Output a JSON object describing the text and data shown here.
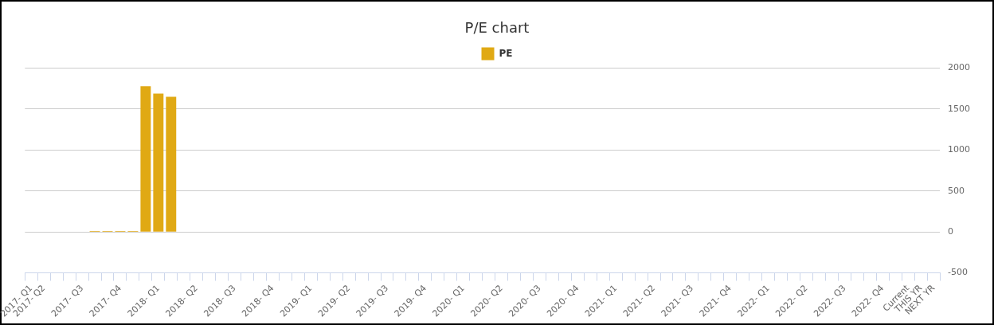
{
  "chart_data": {
    "type": "bar",
    "title": "P/E chart",
    "categories": [
      "2017- Q1",
      "2017- Q2",
      null,
      null,
      "2017- Q3",
      null,
      null,
      "2017- Q4",
      null,
      null,
      "2018- Q1",
      null,
      null,
      "2018- Q2",
      null,
      null,
      "2018- Q3",
      null,
      null,
      "2018- Q4",
      null,
      null,
      "2019- Q1",
      null,
      null,
      "2019- Q2",
      null,
      null,
      "2019- Q3",
      null,
      null,
      "2019- Q4",
      null,
      null,
      "2020- Q1",
      null,
      null,
      "2020- Q2",
      null,
      null,
      "2020- Q3",
      null,
      null,
      "2020- Q4",
      null,
      null,
      "2021- Q1",
      null,
      null,
      "2021- Q2",
      null,
      null,
      "2021- Q3",
      null,
      null,
      "2021- Q4",
      null,
      null,
      "2022- Q1",
      null,
      null,
      "2022- Q2",
      null,
      null,
      "2022- Q3",
      null,
      null,
      "2022- Q4",
      null,
      "Current",
      "THIS YR",
      "NEXT YR"
    ],
    "series": [
      {
        "name": "PE",
        "color": "#e0a914",
        "values": [
          0,
          0,
          0,
          0,
          0,
          10,
          10,
          10,
          10,
          1780,
          1690,
          1650,
          0,
          0,
          0,
          0,
          0,
          0,
          0,
          0,
          0,
          0,
          0,
          0,
          0,
          0,
          0,
          0,
          0,
          0,
          0,
          0,
          0,
          0,
          0,
          0,
          0,
          0,
          0,
          0,
          0,
          0,
          0,
          0,
          0,
          0,
          null,
          null,
          null,
          null,
          null,
          null,
          null,
          null,
          null,
          null,
          null,
          null,
          null,
          null,
          null,
          null,
          null,
          null,
          null,
          null,
          null,
          null,
          null,
          null,
          null,
          null
        ]
      }
    ],
    "ylim": [
      -500,
      2000
    ],
    "yticks": [
      -500,
      0,
      500,
      1000,
      1500,
      2000
    ],
    "grid": "y",
    "legend": "top"
  }
}
